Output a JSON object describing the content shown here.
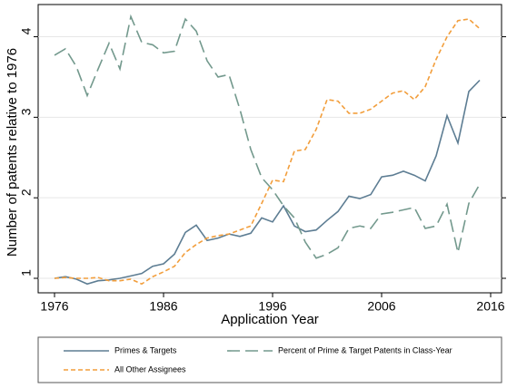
{
  "chart_data": {
    "type": "line",
    "x": [
      1976,
      1977,
      1978,
      1979,
      1980,
      1981,
      1982,
      1983,
      1984,
      1985,
      1986,
      1987,
      1988,
      1989,
      1990,
      1991,
      1992,
      1993,
      1994,
      1995,
      1996,
      1997,
      1998,
      1999,
      2000,
      2001,
      2002,
      2003,
      2004,
      2005,
      2006,
      2007,
      2008,
      2009,
      2010,
      2011,
      2012,
      2013,
      2014,
      2015
    ],
    "series": [
      {
        "name": "Primes & Targets",
        "color": "#5d7d93",
        "style": "solid",
        "values": [
          1.0,
          1.02,
          0.99,
          0.93,
          0.97,
          0.98,
          1.0,
          1.03,
          1.06,
          1.15,
          1.18,
          1.3,
          1.57,
          1.66,
          1.47,
          1.5,
          1.55,
          1.52,
          1.56,
          1.75,
          1.7,
          1.9,
          1.65,
          1.58,
          1.6,
          1.72,
          1.83,
          2.02,
          1.99,
          2.04,
          2.26,
          2.28,
          2.33,
          2.28,
          2.21,
          2.52,
          3.02,
          2.68,
          3.32,
          3.46
        ]
      },
      {
        "name": "Percent of Prime & Target Patents in Class-Year",
        "color": "#73998d",
        "style": "longdash",
        "values": [
          3.77,
          3.85,
          3.63,
          3.27,
          3.6,
          3.92,
          3.6,
          4.25,
          3.93,
          3.9,
          3.8,
          3.82,
          4.22,
          4.07,
          3.7,
          3.5,
          3.53,
          3.1,
          2.6,
          2.25,
          2.1,
          1.9,
          1.75,
          1.45,
          1.25,
          1.3,
          1.38,
          1.62,
          1.65,
          1.62,
          1.8,
          1.82,
          1.85,
          1.88,
          1.62,
          1.65,
          1.92,
          1.32,
          1.93,
          2.17
        ]
      },
      {
        "name": "All Other Assignees",
        "color": "#f29e3c",
        "style": "dash",
        "values": [
          1.0,
          1.01,
          1.0,
          1.0,
          1.01,
          0.97,
          0.97,
          0.99,
          0.93,
          1.02,
          1.08,
          1.15,
          1.32,
          1.42,
          1.5,
          1.53,
          1.55,
          1.6,
          1.65,
          1.93,
          2.22,
          2.2,
          2.58,
          2.6,
          2.85,
          3.22,
          3.2,
          3.05,
          3.05,
          3.1,
          3.2,
          3.3,
          3.33,
          3.22,
          3.38,
          3.72,
          4.0,
          4.2,
          4.22,
          4.1
        ]
      }
    ],
    "xlabel": "Application Year",
    "ylabel": "Number of patents relative to 1976",
    "xlim": [
      1974.5,
      2017
    ],
    "ylim": [
      0.82,
      4.4
    ],
    "xticks": [
      1976,
      1986,
      1996,
      2006,
      2016
    ],
    "yticks": [
      1,
      2,
      3,
      4
    ],
    "grid": true
  }
}
